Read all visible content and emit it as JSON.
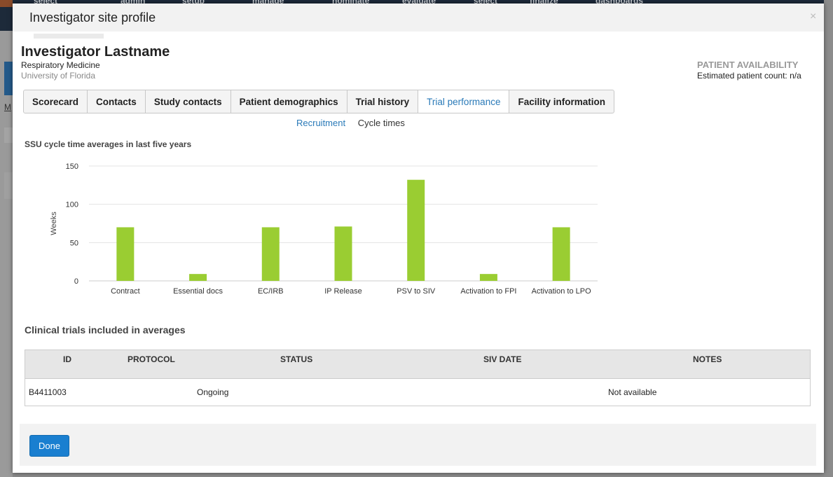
{
  "modal": {
    "title": "Investigator site profile",
    "close_glyph": "×"
  },
  "investigator": {
    "name": "Investigator Lastname",
    "department": "Respiratory Medicine",
    "institution": "University of Florida"
  },
  "availability": {
    "title": "PATIENT AVAILABILITY",
    "estimated_label": "Estimated patient count:",
    "estimated_value": "n/a"
  },
  "tabs": [
    {
      "label": "Scorecard",
      "active": false
    },
    {
      "label": "Contacts",
      "active": false
    },
    {
      "label": "Study contacts",
      "active": false
    },
    {
      "label": "Patient demographics",
      "active": false
    },
    {
      "label": "Trial history",
      "active": false
    },
    {
      "label": "Trial performance",
      "active": true
    },
    {
      "label": "Facility information",
      "active": false
    }
  ],
  "subtabs": {
    "recruitment": "Recruitment",
    "cycle_times": "Cycle times"
  },
  "chart_heading": "SSU cycle time averages in last five years",
  "chart_data": {
    "type": "bar",
    "categories": [
      "Contract",
      "Essential docs",
      "EC/IRB",
      "IP Release",
      "PSV to SIV",
      "Activation to FPI",
      "Activation to LPO"
    ],
    "values": [
      70,
      9,
      70,
      71,
      132,
      9,
      70
    ],
    "ylabel": "Weeks",
    "xlabel": "",
    "ylim": [
      0,
      150
    ],
    "yticks": [
      0,
      50,
      100,
      150
    ],
    "bar_color": "#9acd32",
    "grid": true
  },
  "trials": {
    "title": "Clinical trials included in averages",
    "columns": [
      "ID",
      "PROTOCOL",
      "STATUS",
      "SIV DATE",
      "NOTES"
    ],
    "rows": [
      {
        "id": "B4411003",
        "protocol": "",
        "status": "Ongoing",
        "siv_date": "",
        "notes": "Not available"
      }
    ]
  },
  "footer": {
    "done_label": "Done"
  },
  "background": {
    "nav_items": [
      "select",
      "admin",
      "setup",
      "manage",
      "nominate",
      "evaluate",
      "select",
      "finalize",
      "dashboards"
    ],
    "left_link": "M"
  },
  "colors": {
    "accent": "#2a7ab8",
    "primary_button": "#1a7fd0",
    "bar": "#9acd32"
  }
}
